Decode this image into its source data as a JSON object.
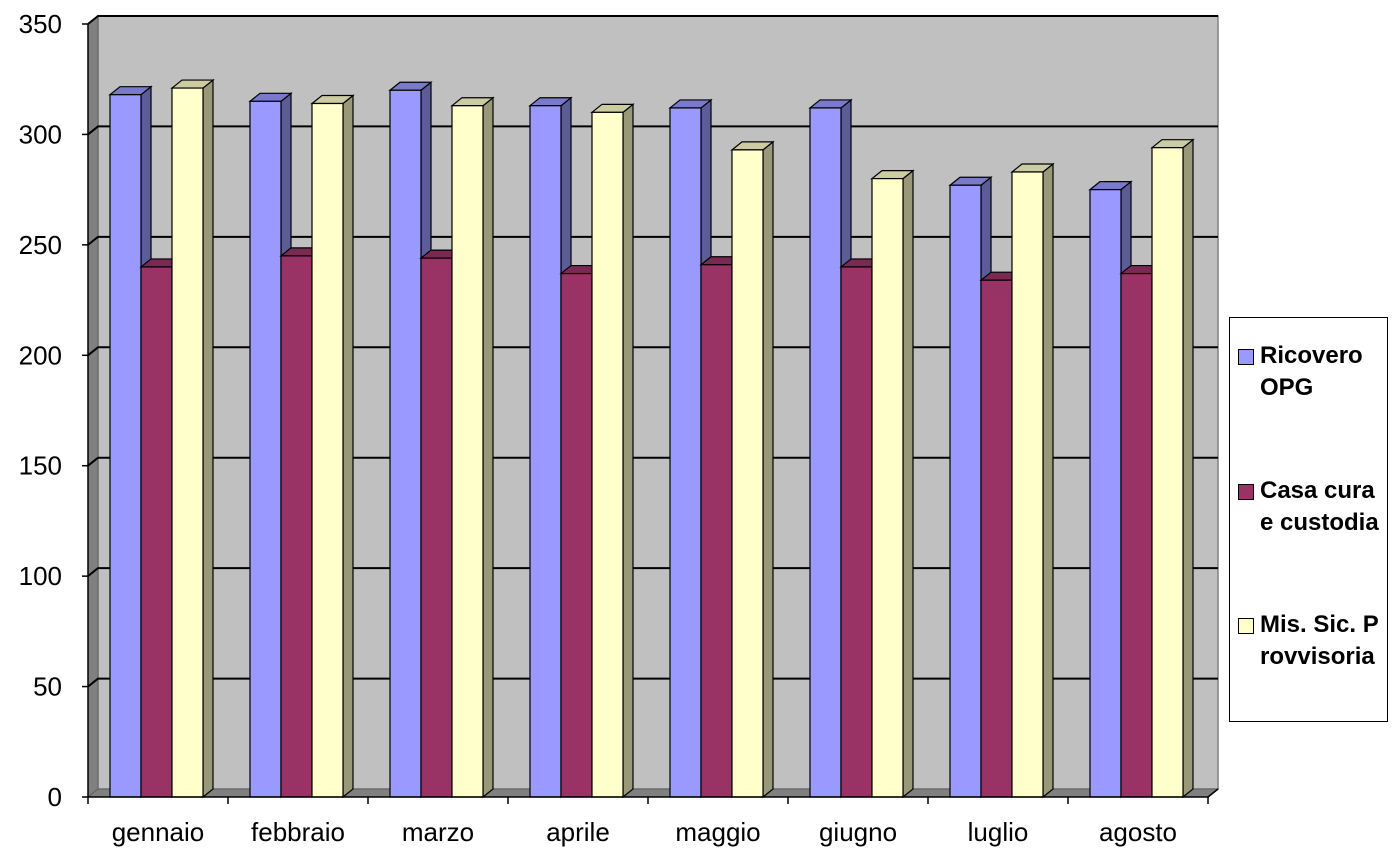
{
  "chart_data": {
    "type": "bar",
    "categories": [
      "gennaio",
      "febbraio",
      "marzo",
      "aprile",
      "maggio",
      "giugno",
      "luglio",
      "agosto"
    ],
    "series": [
      {
        "name": "Ricovero OPG",
        "values": [
          318,
          315,
          320,
          313,
          312,
          312,
          277,
          275
        ],
        "color": "#9999ff"
      },
      {
        "name": "Casa cura e custodia",
        "values": [
          240,
          245,
          244,
          237,
          241,
          240,
          234,
          237
        ],
        "color": "#993366"
      },
      {
        "name": "Mis. Sic. Provvisoria",
        "values": [
          321,
          314,
          313,
          310,
          293,
          280,
          283,
          294
        ],
        "color": "#ffffcc"
      }
    ],
    "yticks": [
      0,
      50,
      100,
      150,
      200,
      250,
      300,
      350
    ],
    "ylim": [
      0,
      350
    ],
    "grid": true,
    "legend_position": "right",
    "plot_background": "#c0c0c0"
  }
}
